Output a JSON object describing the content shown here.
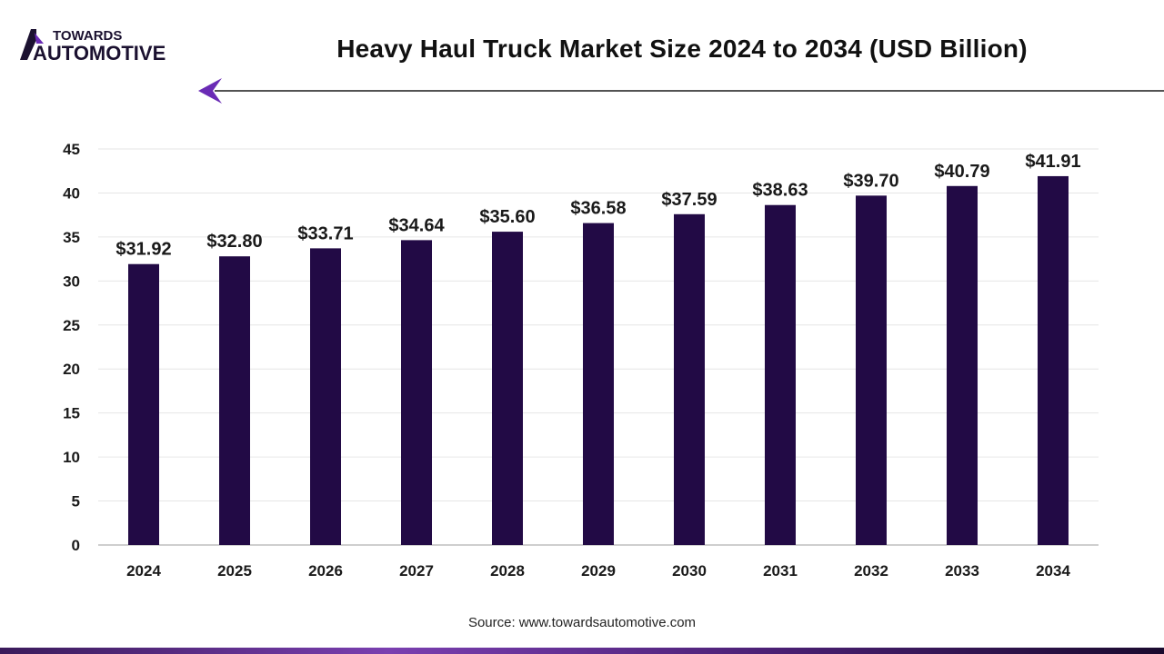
{
  "brand": {
    "line1": "TOWARDS",
    "line2": "AUTOMOTIVE",
    "accent_color": "#6a2bb5",
    "dark_color": "#1b1130"
  },
  "header": {
    "title": "Heavy Haul Truck Market Size 2024 to 2034 (USD Billion)",
    "arrow_icon": "left-triangle-arrow",
    "arrow_color": "#6a2bb5"
  },
  "chart_data": {
    "type": "bar",
    "categories": [
      "2024",
      "2025",
      "2026",
      "2027",
      "2028",
      "2029",
      "2030",
      "2031",
      "2032",
      "2033",
      "2034"
    ],
    "values": [
      31.92,
      32.8,
      33.71,
      34.64,
      35.6,
      36.58,
      37.59,
      38.63,
      39.7,
      40.79,
      41.91
    ],
    "data_labels": [
      "$31.92",
      "$32.80",
      "$33.71",
      "$34.64",
      "$35.60",
      "$36.58",
      "$37.59",
      "$38.63",
      "$39.70",
      "$40.79",
      "$41.91"
    ],
    "title": "Heavy Haul Truck Market Size 2024 to 2034 (USD Billion)",
    "xlabel": "",
    "ylabel": "",
    "ylim": [
      0,
      45
    ],
    "yticks": [
      0,
      5,
      10,
      15,
      20,
      25,
      30,
      35,
      40,
      45
    ],
    "grid": true,
    "bar_color": "#220a45",
    "legend": "none"
  },
  "footer": {
    "source": "Source: www.towardsautomotive.com"
  }
}
